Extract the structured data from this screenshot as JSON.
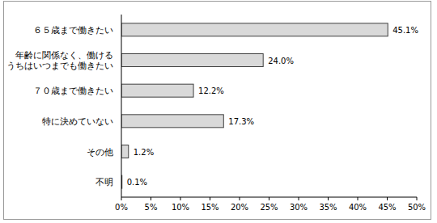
{
  "chart_data": {
    "type": "bar",
    "orientation": "horizontal",
    "categories": [
      "６５歳まで働きたい",
      "年齢に関係なく、働けるうちはいつまでも働きたい",
      "７０歳まで働きたい",
      "特に決めていない",
      "その他",
      "不明"
    ],
    "values": [
      45.1,
      24.0,
      12.2,
      17.3,
      1.2,
      0.1
    ],
    "value_labels": [
      "45.1%",
      "24.0%",
      "12.2%",
      "17.3%",
      "1.2%",
      "0.1%"
    ],
    "data_labels": true,
    "color": "#d9d9d9",
    "grid": false,
    "xlim": [
      0,
      50
    ],
    "xticks": [
      {
        "value": 0,
        "label": "0%"
      },
      {
        "value": 5,
        "label": "5%"
      },
      {
        "value": 10,
        "label": "10%"
      },
      {
        "value": 15,
        "label": "15%"
      },
      {
        "value": 20,
        "label": "20%"
      },
      {
        "value": 25,
        "label": "25%"
      },
      {
        "value": 30,
        "label": "30%"
      },
      {
        "value": 35,
        "label": "35%"
      },
      {
        "value": 40,
        "label": "40%"
      },
      {
        "value": 45,
        "label": "45%"
      },
      {
        "value": 50,
        "label": "50%"
      }
    ]
  }
}
